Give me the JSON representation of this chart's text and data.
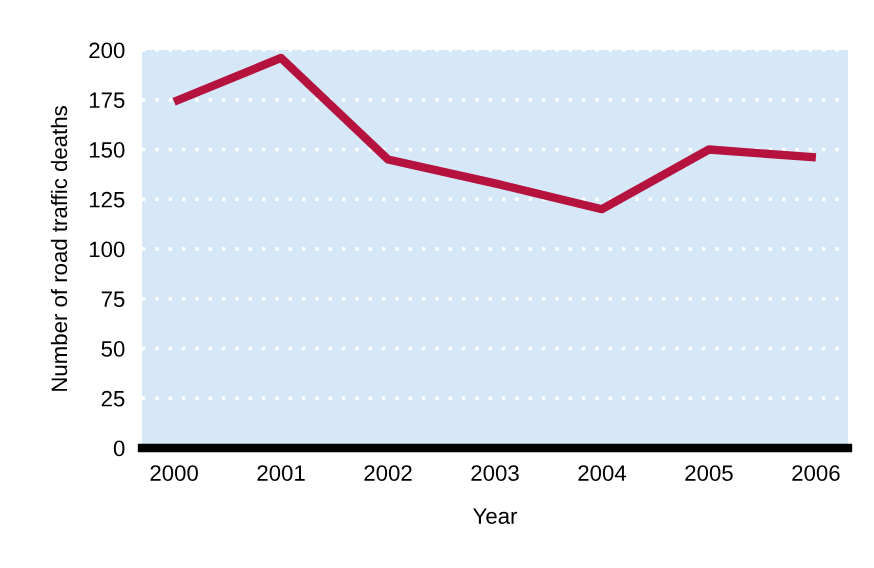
{
  "chart_data": {
    "type": "line",
    "xlabel": "Year",
    "ylabel": "Number of road traffic deaths",
    "categories": [
      "2000",
      "2001",
      "2002",
      "2003",
      "2004",
      "2005",
      "2006"
    ],
    "series": [
      {
        "color": "#b5123e",
        "values": [
          174,
          196,
          145,
          133,
          120,
          150,
          146
        ]
      }
    ],
    "ylim": [
      0,
      200
    ],
    "yticks": [
      0,
      25,
      50,
      75,
      100,
      125,
      150,
      175,
      200
    ],
    "grid": "y",
    "marker": "none",
    "line_style": "solid",
    "legend": false
  }
}
